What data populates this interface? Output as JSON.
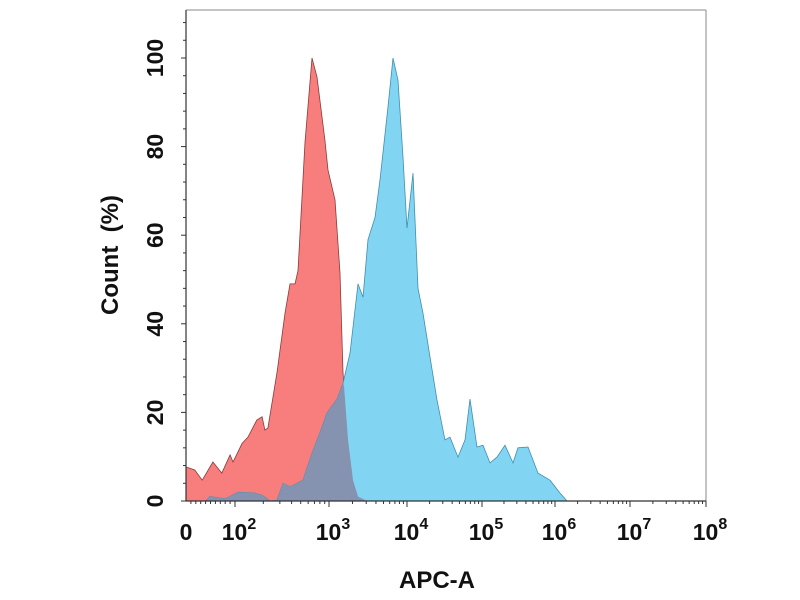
{
  "chart_data": {
    "type": "area",
    "title": "",
    "xlabel": "APC-A",
    "ylabel": "Count  (%)",
    "x_scale": "biexponential",
    "xlim": [
      0,
      100000000
    ],
    "ylim": [
      0,
      110
    ],
    "x_ticks": [
      {
        "value": 0,
        "base": "0",
        "exp": ""
      },
      {
        "value": 100,
        "base": "10",
        "exp": "2"
      },
      {
        "value": 1000,
        "base": "10",
        "exp": "3"
      },
      {
        "value": 10000,
        "base": "10",
        "exp": "4"
      },
      {
        "value": 100000,
        "base": "10",
        "exp": "5"
      },
      {
        "value": 1000000,
        "base": "10",
        "exp": "6"
      },
      {
        "value": 10000000,
        "base": "10",
        "exp": "7"
      },
      {
        "value": 100000000,
        "base": "10",
        "exp": "8"
      }
    ],
    "y_ticks": [
      "0",
      "20",
      "40",
      "60",
      "80",
      "100"
    ],
    "grid": false,
    "legend": "none",
    "series": [
      {
        "color": "#f87e7e",
        "stroke": "#8a3a3a",
        "points": [
          [
            0,
            7.7
          ],
          [
            18,
            7
          ],
          [
            33,
            4.7
          ],
          [
            55,
            8.8
          ],
          [
            73,
            6.3
          ],
          [
            90,
            10.4
          ],
          [
            96,
            8.8
          ],
          [
            119,
            13
          ],
          [
            137,
            14.4
          ],
          [
            171,
            18.3
          ],
          [
            194,
            19
          ],
          [
            208,
            16
          ],
          [
            224,
            16.5
          ],
          [
            280,
            29
          ],
          [
            340,
            42.4
          ],
          [
            385,
            49
          ],
          [
            435,
            49
          ],
          [
            468,
            52
          ],
          [
            555,
            81
          ],
          [
            660,
            100
          ],
          [
            745,
            95.7
          ],
          [
            905,
            81.5
          ],
          [
            975,
            74.7
          ],
          [
            1194,
            68
          ],
          [
            1383,
            51.5
          ],
          [
            1511,
            29
          ],
          [
            1754,
            13.8
          ],
          [
            2031,
            4.7
          ],
          [
            2355,
            1
          ],
          [
            3069,
            0
          ]
        ]
      },
      {
        "color": "#82d4f3",
        "stroke": "#3f8fae",
        "points": [
          [
            0,
            0
          ],
          [
            40,
            0
          ],
          [
            49,
            1
          ],
          [
            80,
            0.5
          ],
          [
            108,
            2
          ],
          [
            160,
            1.8
          ],
          [
            194,
            1.3
          ],
          [
            236,
            0
          ],
          [
            280,
            0.2
          ],
          [
            324,
            4
          ],
          [
            385,
            3.2
          ],
          [
            528,
            4.7
          ],
          [
            660,
            10.8
          ],
          [
            843,
            16.7
          ],
          [
            952,
            19.9
          ],
          [
            1267,
            23
          ],
          [
            1511,
            26.6
          ],
          [
            1858,
            33.4
          ],
          [
            2355,
            49
          ],
          [
            2730,
            46
          ],
          [
            3162,
            59
          ],
          [
            3890,
            64
          ],
          [
            4510,
            72.5
          ],
          [
            5710,
            89
          ],
          [
            6620,
            100
          ],
          [
            7670,
            95
          ],
          [
            8890,
            77.6
          ],
          [
            10000,
            61.6
          ],
          [
            12020,
            74
          ],
          [
            14000,
            48
          ],
          [
            16350,
            42.4
          ],
          [
            20280,
            32.5
          ],
          [
            25120,
            22.8
          ],
          [
            32100,
            13.8
          ],
          [
            37430,
            14.4
          ],
          [
            47860,
            9.9
          ],
          [
            59330,
            13.8
          ],
          [
            69200,
            23
          ],
          [
            85700,
            12.2
          ],
          [
            103200,
            12.6
          ],
          [
            128700,
            8.6
          ],
          [
            160400,
            9.9
          ],
          [
            206500,
            12.6
          ],
          [
            266000,
            8.6
          ],
          [
            311300,
            12
          ],
          [
            426600,
            12.2
          ],
          [
            584800,
            6.3
          ],
          [
            854600,
            4.7
          ],
          [
            1166000,
            1.8
          ],
          [
            1445000,
            0
          ]
        ]
      }
    ],
    "overlap_color": "#8592b0"
  }
}
